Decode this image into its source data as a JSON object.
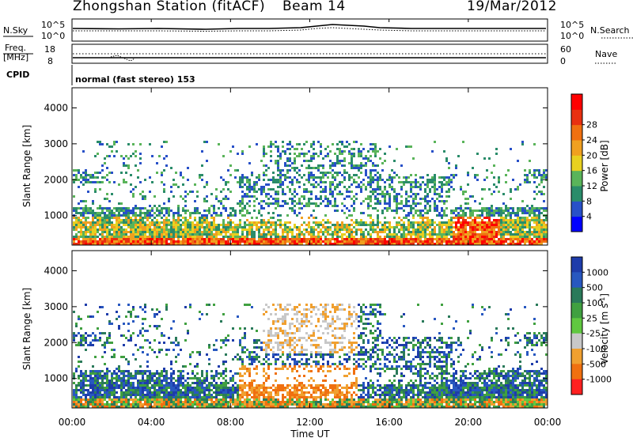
{
  "header": {
    "station": "Zhongshan Station (fitACF)",
    "beam": "Beam 14",
    "date": "19/Mar/2012"
  },
  "top_panel": {
    "left_label": "N.Sky",
    "left_ticks": [
      "10^5",
      "10^0"
    ],
    "right_label": "N.Search",
    "right_ticks": [
      "10^5",
      "10^0"
    ]
  },
  "freq_panel": {
    "left_label_1": "Freq.",
    "left_label_2": "[MHz]",
    "left_ticks": [
      "18",
      "8"
    ],
    "right_label": "Nave",
    "right_ticks": [
      "60",
      "0"
    ]
  },
  "cpid_panel": {
    "label": "CPID",
    "mode_text": "normal (fast stereo) 153"
  },
  "chart_data": [
    {
      "type": "heatmap",
      "quantity": "Power",
      "ylabel": "Slant Range [km]",
      "yticks": [
        "1000",
        "2000",
        "3000",
        "4000"
      ],
      "ylim": [
        180,
        4560
      ],
      "xlim_hours": [
        0,
        24
      ],
      "colorbar_label": "Power [dB]",
      "colorbar_ticks": [
        "4",
        "8",
        "12",
        "16",
        "20",
        "24",
        "28"
      ],
      "colorbar_colors": [
        "#0000ff",
        "#2850c8",
        "#2a8c6a",
        "#5ab45a",
        "#e8d020",
        "#f0a020",
        "#f07010",
        "#e83010",
        "#ff0000"
      ]
    },
    {
      "type": "heatmap",
      "quantity": "Velocity",
      "ylabel": "Slant Range [km]",
      "yticks": [
        "1000",
        "2000",
        "3000",
        "4000"
      ],
      "ylim": [
        180,
        4560
      ],
      "xlim_hours": [
        0,
        24
      ],
      "colorbar_label": "Velocity [m s",
      "colorbar_label_sup": "-1",
      "colorbar_label_end": "]",
      "colorbar_ticks": [
        "1000",
        "500",
        "100",
        "25",
        "-25",
        "-100",
        "-500",
        "-1000"
      ],
      "colorbar_colors": [
        "#1e3caa",
        "#2858c0",
        "#2a7a5a",
        "#40a040",
        "#60c840",
        "#c8c8c8",
        "#f0a030",
        "#f07010",
        "#ff2020"
      ]
    }
  ],
  "x_axis": {
    "ticks": [
      "00:00",
      "04:00",
      "08:00",
      "12:00",
      "16:00",
      "20:00",
      "00:00"
    ],
    "label": "Time UT"
  },
  "colors": {
    "axis": "#000000",
    "background": "#ffffff"
  }
}
